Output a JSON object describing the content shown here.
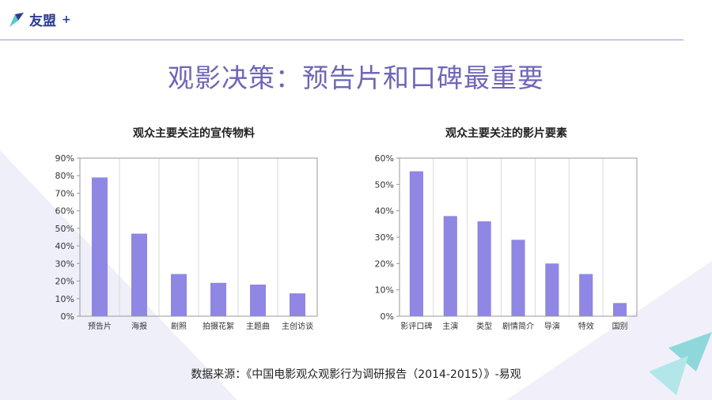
{
  "logo": {
    "text": "友盟",
    "plus": "+"
  },
  "page_title": "观影决策：预告片和口碑最重要",
  "source_note": "数据来源：《中国电影观众观影行为调研报告（2014-2015）》-易观",
  "colors": {
    "bar": "#8f87e3",
    "title": "#6e66b8",
    "grid": "#d9d9d9",
    "axis": "#9a9a9a",
    "rule": "#9b95c6"
  },
  "chart_data": [
    {
      "type": "bar",
      "title": "观众主要关注的宣传物料",
      "categories": [
        "预告片",
        "海报",
        "剧照",
        "拍摄花絮",
        "主题曲",
        "主创访谈"
      ],
      "values": [
        79,
        47,
        24,
        19,
        18,
        13
      ],
      "ylim": [
        0,
        90
      ],
      "yticks": [
        0,
        10,
        20,
        30,
        40,
        50,
        60,
        70,
        80,
        90
      ],
      "ytick_labels": [
        "0%",
        "10%",
        "20%",
        "30%",
        "40%",
        "50%",
        "60%",
        "70%",
        "80%",
        "90%"
      ],
      "grid": "vertical",
      "legend": "none"
    },
    {
      "type": "bar",
      "title": "观众主要关注的影片要素",
      "categories": [
        "影评口碑",
        "主演",
        "类型",
        "剧情简介",
        "导演",
        "特效",
        "国别"
      ],
      "values": [
        55,
        38,
        36,
        29,
        20,
        16,
        5
      ],
      "ylim": [
        0,
        60
      ],
      "yticks": [
        0,
        10,
        20,
        30,
        40,
        50,
        60
      ],
      "ytick_labels": [
        "0%",
        "10%",
        "20%",
        "30%",
        "40%",
        "50%",
        "60%"
      ],
      "grid": "vertical",
      "legend": "none"
    }
  ]
}
